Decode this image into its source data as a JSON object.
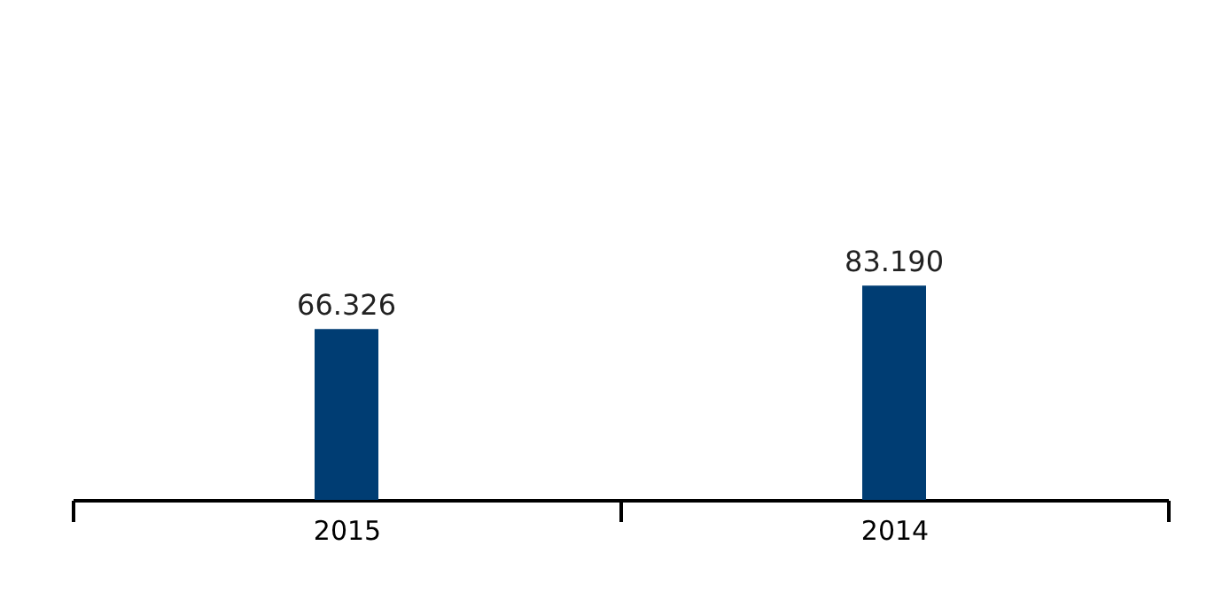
{
  "chart_data": {
    "type": "bar",
    "categories": [
      "2015",
      "2014"
    ],
    "values": [
      66326,
      83190
    ],
    "value_labels": [
      "66.326",
      "83.190"
    ],
    "color": "#003d73",
    "ylim": [
      0,
      194000
    ],
    "grid": false
  }
}
